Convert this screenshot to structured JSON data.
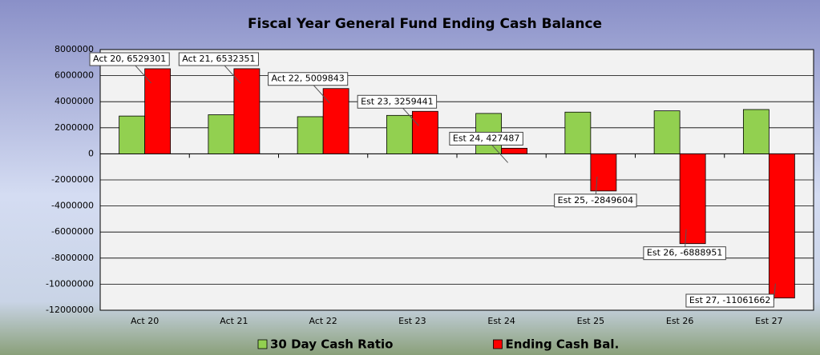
{
  "chart_data": {
    "type": "bar",
    "title": "Fiscal Year General Fund Ending Cash Balance",
    "categories": [
      "Act 20",
      "Act 21",
      "Act 22",
      "Est 23",
      "Est 24",
      "Est 25",
      "Est 26",
      "Est 27"
    ],
    "series": [
      {
        "name": "30 Day Cash Ratio",
        "color": "#92d050",
        "values": [
          2900000,
          3000000,
          2850000,
          2950000,
          3100000,
          3200000,
          3300000,
          3400000
        ]
      },
      {
        "name": "Ending Cash Bal.",
        "color": "#ff0000",
        "values": [
          6529301,
          6532351,
          5009843,
          3259441,
          427487,
          -2849604,
          -6888951,
          -11061662
        ],
        "value_labels": [
          "Act 20, 6529301",
          "Act 21, 6532351",
          "Act 22, 5009843",
          "Est 23, 3259441",
          "Est 24, 427487",
          "Est 25, -2849604",
          "Est 26, -6888951",
          "Est 27, -11061662"
        ]
      }
    ],
    "ylim": [
      -12000000,
      8000000
    ],
    "yticks": [
      -12000000,
      -10000000,
      -8000000,
      -6000000,
      -4000000,
      -2000000,
      0,
      2000000,
      4000000,
      6000000,
      8000000
    ],
    "grid": true,
    "legend": "bottom"
  }
}
